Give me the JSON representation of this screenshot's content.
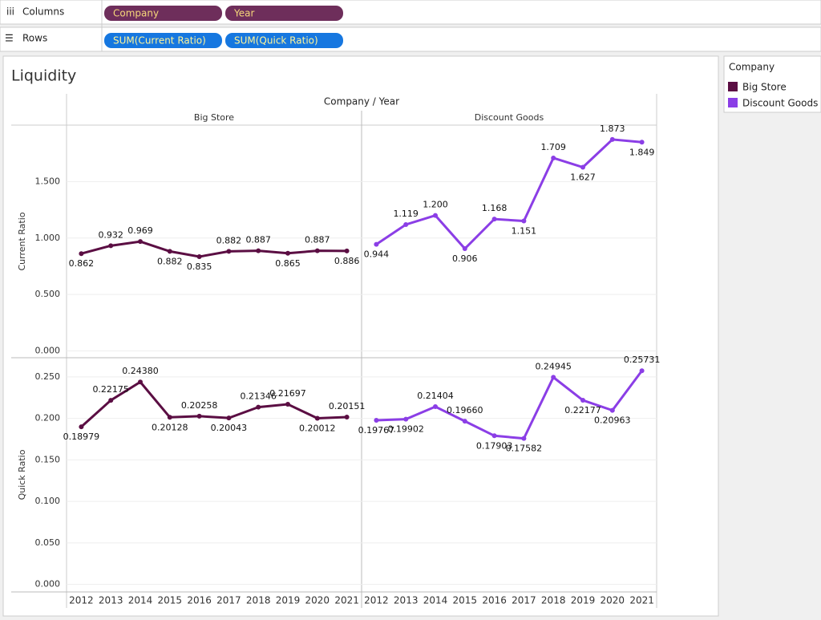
{
  "shelves": {
    "columns": {
      "label": "Columns",
      "pills": [
        "Company",
        "Year"
      ]
    },
    "rows": {
      "label": "Rows",
      "pills": [
        "SUM(Current Ratio)",
        "SUM(Quick Ratio)"
      ]
    }
  },
  "sheet": {
    "title": "Liquidity",
    "column_header": "Company / Year",
    "legend_title": "Company"
  },
  "chart_data": [
    {
      "type": "line",
      "y_label": "Current Ratio",
      "ylim": [
        -0.06,
        2.0
      ],
      "yticks": [
        {
          "value": 0,
          "label": "0.000"
        },
        {
          "value": 0.5,
          "label": "0.500"
        },
        {
          "value": 1,
          "label": "1.000"
        },
        {
          "value": 1.5,
          "label": "1.500"
        }
      ],
      "grid": true,
      "series": [
        {
          "name": "Big Store",
          "color": "#5b0e43",
          "values": [
            0.862,
            0.932,
            0.969,
            0.882,
            0.835,
            0.882,
            0.887,
            0.865,
            0.887,
            0.886
          ],
          "value_labels": [
            "0.862",
            "0.932",
            "0.969",
            "0.882",
            "0.835",
            "0.882",
            "0.887",
            "0.865",
            "0.887",
            "0.886"
          ]
        },
        {
          "name": "Discount Goods",
          "color": "#8b3ee6",
          "values": [
            0.944,
            1.119,
            1.2,
            0.906,
            1.168,
            1.151,
            1.709,
            1.627,
            1.873,
            1.849
          ],
          "value_labels": [
            "0.944",
            "1.119",
            "1.200",
            "0.906",
            "1.168",
            "1.151",
            "1.709",
            "1.627",
            "1.873",
            "1.849"
          ]
        }
      ]
    },
    {
      "type": "line",
      "y_label": "Quick Ratio",
      "categories": [
        "2012",
        "2013",
        "2014",
        "2015",
        "2016",
        "2017",
        "2018",
        "2019",
        "2020",
        "2021"
      ],
      "ylim": [
        -0.009,
        0.273
      ],
      "yticks": [
        {
          "value": 0,
          "label": "0.000"
        },
        {
          "value": 0.05,
          "label": "0.050"
        },
        {
          "value": 0.1,
          "label": "0.100"
        },
        {
          "value": 0.15,
          "label": "0.150"
        },
        {
          "value": 0.2,
          "label": "0.200"
        },
        {
          "value": 0.25,
          "label": "0.250"
        }
      ],
      "grid": true,
      "series": [
        {
          "name": "Big Store",
          "color": "#5b0e43",
          "values": [
            0.18979,
            0.22175,
            0.2438,
            0.20128,
            0.20258,
            0.20043,
            0.21346,
            0.21697,
            0.20012,
            0.20151
          ],
          "value_labels": [
            "0.18979",
            "0.22175",
            "0.24380",
            "0.20128",
            "0.20258",
            "0.20043",
            "0.21346",
            "0.21697",
            "0.20012",
            "0.20151"
          ]
        },
        {
          "name": "Discount Goods",
          "color": "#8b3ee6",
          "values": [
            0.19767,
            0.19902,
            0.21404,
            0.1966,
            0.17903,
            0.17582,
            0.24945,
            0.22177,
            0.20963,
            0.25731
          ],
          "value_labels": [
            "0.19767",
            "0.19902",
            "0.21404",
            "0.19660",
            "0.17903",
            "0.17582",
            "0.24945",
            "0.22177",
            "0.20963",
            "0.25731"
          ]
        }
      ]
    }
  ]
}
